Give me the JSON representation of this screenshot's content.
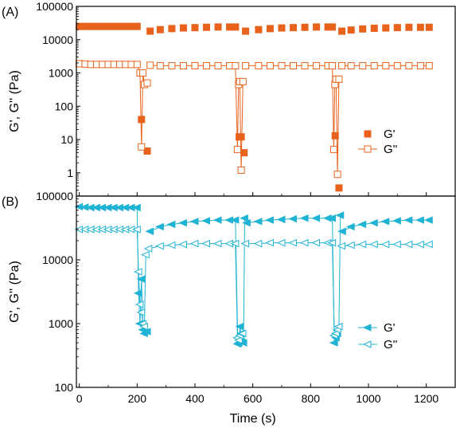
{
  "figure": {
    "xlabel": "Time (s)",
    "xlim": [
      -10,
      1300
    ],
    "xticks": [
      0,
      200,
      400,
      600,
      800,
      1000,
      1200
    ]
  },
  "chart_data": [
    {
      "type": "scatter",
      "panel_label": "(A)",
      "ylabel": "G', G'' (Pa)",
      "yscale": "log",
      "ylim": [
        0.2,
        100000
      ],
      "yticks": [
        1,
        10,
        100,
        1000,
        10000,
        100000
      ],
      "ytick_labels": [
        "1",
        "10",
        "100",
        "1000",
        "10000",
        "100000"
      ],
      "legend_position": "middle-right",
      "colors": {
        "series": "#E8621C"
      },
      "series": [
        {
          "name": "G'",
          "marker": "filled-square",
          "line": false,
          "segments": [
            {
              "x": [
                0,
                20,
                40,
                60,
                80,
                100,
                120,
                140,
                160,
                180,
                200
              ],
              "y": [
                25000,
                25000,
                25000,
                25000,
                25000,
                25000,
                25000,
                25000,
                25000,
                25000,
                25000
              ]
            },
            {
              "x": [
                215,
                235
              ],
              "y": [
                40,
                4.5
              ]
            },
            {
              "x": [
                245,
                280,
                320,
                360,
                400,
                440,
                480,
                520,
                540
              ],
              "y": [
                18000,
                20000,
                21500,
                22500,
                23000,
                23500,
                24000,
                24000,
                24000
              ]
            },
            {
              "x": [
                553,
                560,
                570
              ],
              "y": [
                12,
                12,
                4
              ]
            },
            {
              "x": [
                575,
                620,
                660,
                700,
                740,
                780,
                820,
                860,
                875
              ],
              "y": [
                18000,
                20000,
                21500,
                22500,
                23000,
                23500,
                24000,
                24000,
                24000
              ]
            },
            {
              "x": [
                885,
                898
              ],
              "y": [
                13,
                0.35
              ]
            },
            {
              "x": [
                908,
                940,
                980,
                1020,
                1060,
                1100,
                1140,
                1180,
                1210
              ],
              "y": [
                18000,
                19500,
                21000,
                22000,
                22500,
                23000,
                23500,
                23500,
                23500
              ]
            }
          ]
        },
        {
          "name": "G''",
          "marker": "open-square",
          "line": true,
          "segments": [
            {
              "x": [
                0,
                20,
                40,
                60,
                80,
                100,
                120,
                140,
                160,
                180,
                200,
                210,
                215,
                220,
                225,
                235
              ],
              "y": [
                1900,
                1850,
                1800,
                1800,
                1800,
                1800,
                1800,
                1800,
                1800,
                1800,
                1800,
                1000,
                6,
                1000,
                450,
                500
              ]
            },
            {
              "x": [
                245,
                280,
                320,
                360,
                400,
                440,
                480,
                520,
                540,
                547,
                551,
                555,
                560,
                566
              ],
              "y": [
                1700,
                1650,
                1650,
                1650,
                1650,
                1650,
                1650,
                1650,
                1650,
                5,
                450,
                550,
                1.2,
                550
              ]
            },
            {
              "x": [
                575,
                620,
                660,
                700,
                740,
                780,
                820,
                860,
                875,
                880,
                884,
                888,
                893,
                898
              ],
              "y": [
                1650,
                1650,
                1650,
                1650,
                1650,
                1650,
                1650,
                1650,
                1650,
                5,
                450,
                650,
                0.9,
                650
              ]
            },
            {
              "x": [
                908,
                940,
                980,
                1020,
                1060,
                1100,
                1140,
                1180,
                1210
              ],
              "y": [
                1650,
                1650,
                1650,
                1650,
                1650,
                1650,
                1650,
                1650,
                1650
              ]
            }
          ]
        }
      ]
    },
    {
      "type": "scatter",
      "panel_label": "(B)",
      "ylabel": "G', G'' (Pa)",
      "yscale": "log",
      "ylim": [
        100,
        100000
      ],
      "yticks": [
        100,
        1000,
        10000,
        100000
      ],
      "ytick_labels": [
        "100",
        "1000",
        "10000",
        "100000"
      ],
      "legend_position": "bottom-right",
      "colors": {
        "series": "#1FB3D4"
      },
      "series": [
        {
          "name": "G'",
          "marker": "filled-left-triangle",
          "line": true,
          "segments": [
            {
              "x": [
                0,
                20,
                40,
                60,
                80,
                100,
                120,
                140,
                160,
                180,
                200,
                205,
                210,
                215,
                220,
                225,
                235
              ],
              "y": [
                68000,
                67000,
                66000,
                66000,
                66000,
                66000,
                66000,
                66000,
                66000,
                66000,
                66000,
                3000,
                1000,
                5000,
                800,
                700,
                750
              ]
            },
            {
              "x": [
                245,
                280,
                320,
                360,
                400,
                440,
                480,
                520,
                540,
                548,
                552,
                556,
                562,
                568,
                572
              ],
              "y": [
                28000,
                33000,
                36000,
                38000,
                40000,
                41000,
                42000,
                42000,
                42000,
                480,
                500,
                900,
                520,
                500,
                45000
              ]
            },
            {
              "x": [
                580,
                620,
                660,
                700,
                740,
                780,
                820,
                860,
                875,
                882,
                888,
                893,
                898,
                903
              ],
              "y": [
                38000,
                40000,
                42000,
                43000,
                44000,
                45000,
                45000,
                45000,
                45000,
                500,
                600,
                700,
                900,
                50000
              ]
            },
            {
              "x": [
                910,
                940,
                980,
                1020,
                1060,
                1100,
                1140,
                1180,
                1210
              ],
              "y": [
                28000,
                33000,
                36000,
                38000,
                40000,
                41000,
                42000,
                42000,
                42000
              ]
            }
          ]
        },
        {
          "name": "G''",
          "marker": "open-left-triangle",
          "line": true,
          "segments": [
            {
              "x": [
                0,
                20,
                40,
                60,
                80,
                100,
                120,
                140,
                160,
                180,
                200,
                205,
                210,
                215,
                220,
                225,
                230
              ],
              "y": [
                30000,
                30000,
                30000,
                30000,
                30000,
                30000,
                30000,
                30000,
                30000,
                30000,
                30000,
                6500,
                2000,
                1500,
                1000,
                900,
                12000
              ]
            },
            {
              "x": [
                240,
                280,
                320,
                360,
                400,
                440,
                480,
                520,
                540,
                547,
                552,
                556,
                560,
                565
              ],
              "y": [
                15000,
                16500,
                17000,
                17500,
                18000,
                18000,
                18000,
                18000,
                18000,
                600,
                550,
                650,
                700,
                700
              ]
            },
            {
              "x": [
                575,
                620,
                660,
                700,
                740,
                780,
                820,
                860,
                875,
                882,
                888,
                893,
                898
              ],
              "y": [
                18000,
                18000,
                18500,
                18500,
                18500,
                18500,
                18500,
                18500,
                18500,
                650,
                700,
                800,
                900
              ]
            },
            {
              "x": [
                908,
                940,
                980,
                1020,
                1060,
                1100,
                1140,
                1180,
                1210
              ],
              "y": [
                16500,
                17000,
                17500,
                17500,
                17500,
                17500,
                17500,
                17500,
                17500
              ]
            }
          ]
        }
      ]
    }
  ]
}
